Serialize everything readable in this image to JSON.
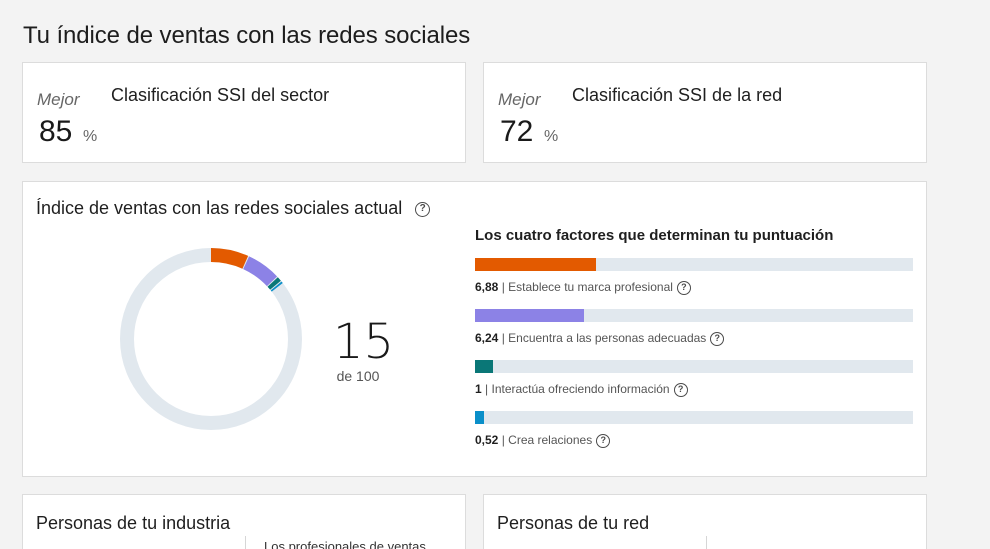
{
  "page": {
    "title": "Tu índice de ventas con las redes sociales"
  },
  "industry_rank": {
    "label": "Mejor",
    "value": "85",
    "unit": "%",
    "title": "Clasificación SSI del sector"
  },
  "network_rank": {
    "label": "Mejor",
    "value": "72",
    "unit": "%",
    "title": "Clasificación SSI de la red"
  },
  "ssi": {
    "title": "Índice de ventas con las redes sociales actual",
    "score": "15",
    "score_of": "de 100",
    "factors_heading": "Los cuatro factores que determinan tu puntuación",
    "factors": [
      {
        "value": "6,88",
        "label": "| Establece tu marca profesional",
        "max": 25,
        "color": "#e35a00"
      },
      {
        "value": "6,24",
        "label": "| Encuentra a las personas adecuadas",
        "max": 25,
        "color": "#8c82e6"
      },
      {
        "value": "1",
        "label": "| Interactúa ofreciendo información",
        "max": 25,
        "color": "#0a7777"
      },
      {
        "value": "0,52",
        "label": "| Crea relaciones",
        "max": 25,
        "color": "#0a8fc9"
      }
    ],
    "donut_track_color": "#e1e8ee"
  },
  "people_industry": {
    "title": "Personas de tu industria",
    "subtitle": "Los profesionales de ventas"
  },
  "people_network": {
    "title": "Personas de tu red"
  },
  "icons": {
    "help": "?"
  }
}
